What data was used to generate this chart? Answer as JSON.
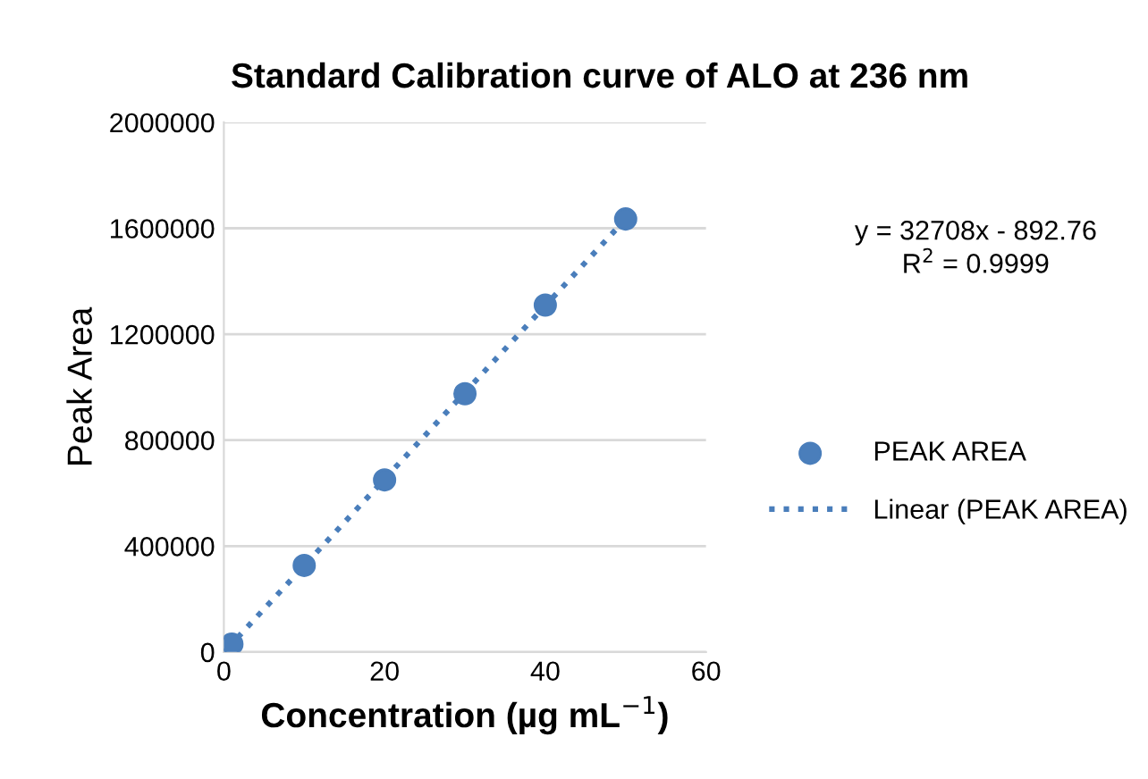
{
  "chart_data": {
    "type": "scatter",
    "title": "Standard Calibration curve of ALO at 236 nm",
    "xlabel": "Concentration (µg mL$^{−1}$)",
    "ylabel": "Peak Area",
    "series": [
      {
        "name": "PEAK AREA",
        "color": "#4a7ebb",
        "marker": "circle",
        "x": [
          1,
          10,
          20,
          30,
          40,
          50
        ],
        "values": [
          30000,
          327000,
          650000,
          975000,
          1310000,
          1635000
        ]
      },
      {
        "name": "Linear (PEAK AREA)",
        "type": "line",
        "color": "#4a7ebb",
        "marker": "none",
        "line_style": "dotted",
        "x": [
          0.5,
          50
        ],
        "values": [
          15000,
          1635000
        ]
      }
    ],
    "annotations": [
      "y = 32708x - 892.76\nR$^{2}$ = 0.9999"
    ],
    "xlim": [
      0,
      60
    ],
    "xticks": [
      0,
      20,
      40,
      60
    ],
    "ylim": [
      0,
      2000000
    ],
    "yticks": [
      0,
      400000,
      800000,
      1200000,
      1600000,
      2000000
    ],
    "grid": "y",
    "legend": "right"
  }
}
